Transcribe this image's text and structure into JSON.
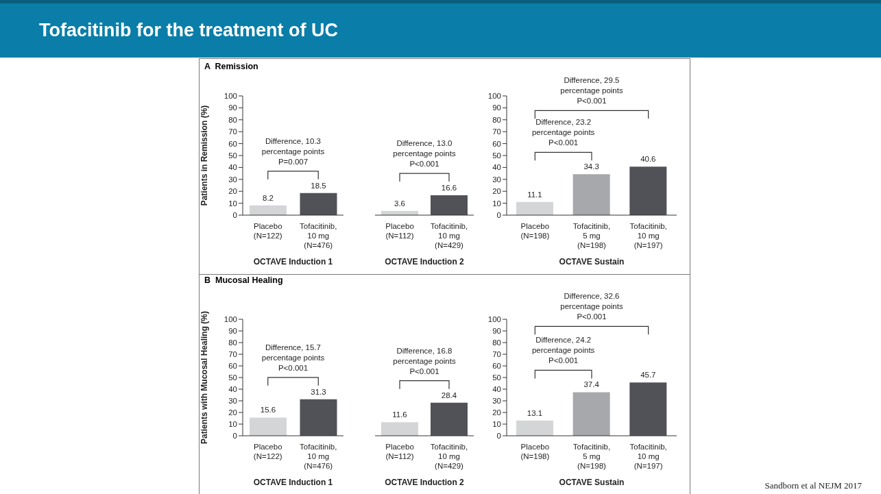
{
  "chart_data": [
    {
      "type": "bar",
      "title": "Tofacitinib for the treatment of UC",
      "subtitle": "A  Remission",
      "ylabel": "Patients in Remission (%)",
      "xlabel": "OCTAVE Induction 1",
      "categories": [
        "Placebo\n(N=122)",
        "Tofacitinib,\n10 mg\n(N=476)"
      ],
      "values": [
        8.2,
        18.5
      ],
      "colors": [
        "#d4d5d7",
        "#505257"
      ],
      "ylim": [
        0,
        100
      ],
      "yticks": [
        0,
        10,
        20,
        30,
        40,
        50,
        60,
        70,
        80,
        90,
        100
      ],
      "data_labels": true,
      "annotations": [
        "Difference, 10.3\npercentage points\nP=0.007"
      ]
    },
    {
      "type": "bar",
      "xlabel": "OCTAVE Induction 2",
      "categories": [
        "Placebo\n(N=112)",
        "Tofacitinib,\n10 mg\n(N=429)"
      ],
      "values": [
        3.6,
        16.6
      ],
      "colors": [
        "#d4d5d7",
        "#505257"
      ],
      "ylim": [
        0,
        100
      ],
      "tick_labels": "x",
      "data_labels": true,
      "annotations": [
        "Difference, 13.0\npercentage points\nP<0.001"
      ]
    },
    {
      "type": "bar",
      "xlabel": "OCTAVE Sustain",
      "categories": [
        "Placebo\n(N=198)",
        "Tofacitinib,\n5 mg\n(N=198)",
        "Tofacitinib,\n10 mg\n(N=197)"
      ],
      "values": [
        11.1,
        34.3,
        40.6
      ],
      "colors": [
        "#d4d5d7",
        "#a7a8ab",
        "#505257"
      ],
      "ylim": [
        0,
        100
      ],
      "yticks": [
        0,
        10,
        20,
        30,
        40,
        50,
        60,
        70,
        80,
        90,
        100
      ],
      "data_labels": true,
      "annotations": [
        "Difference, 23.2\npercentage points\nP<0.001",
        "Difference, 29.5\npercentage points\nP<0.001"
      ]
    },
    {
      "type": "bar",
      "subtitle": "B  Mucosal Healing",
      "ylabel": "Patients with Mucosal Healing (%)",
      "xlabel": "OCTAVE Induction 1",
      "categories": [
        "Placebo\n(N=122)",
        "Tofacitinib,\n10 mg\n(N=476)"
      ],
      "values": [
        15.6,
        31.3
      ],
      "colors": [
        "#d4d5d7",
        "#505257"
      ],
      "ylim": [
        0,
        100
      ],
      "yticks": [
        0,
        10,
        20,
        30,
        40,
        50,
        60,
        70,
        80,
        90,
        100
      ],
      "data_labels": true,
      "annotations": [
        "Difference, 15.7\npercentage points\nP<0.001"
      ]
    },
    {
      "type": "bar",
      "xlabel": "OCTAVE Induction 2",
      "categories": [
        "Placebo\n(N=112)",
        "Tofacitinib,\n10 mg\n(N=429)"
      ],
      "values": [
        11.6,
        28.4
      ],
      "colors": [
        "#d4d5d7",
        "#505257"
      ],
      "ylim": [
        0,
        100
      ],
      "tick_labels": "x",
      "data_labels": true,
      "annotations": [
        "Difference, 16.8\npercentage points\nP<0.001"
      ]
    },
    {
      "type": "bar",
      "xlabel": "OCTAVE Sustain",
      "categories": [
        "Placebo\n(N=198)",
        "Tofacitinib,\n5 mg\n(N=198)",
        "Tofacitinib,\n10 mg\n(N=197)"
      ],
      "values": [
        13.1,
        37.4,
        45.7
      ],
      "colors": [
        "#d4d5d7",
        "#a7a8ab",
        "#505257"
      ],
      "ylim": [
        0,
        100
      ],
      "yticks": [
        0,
        10,
        20,
        30,
        40,
        50,
        60,
        70,
        80,
        90,
        100
      ],
      "data_labels": true,
      "annotations": [
        "Difference, 24.2\npercentage points\nP<0.001",
        "Difference, 32.6\npercentage points\nP<0.001",
        "Sandborn et al NEJM 2017"
      ]
    }
  ]
}
